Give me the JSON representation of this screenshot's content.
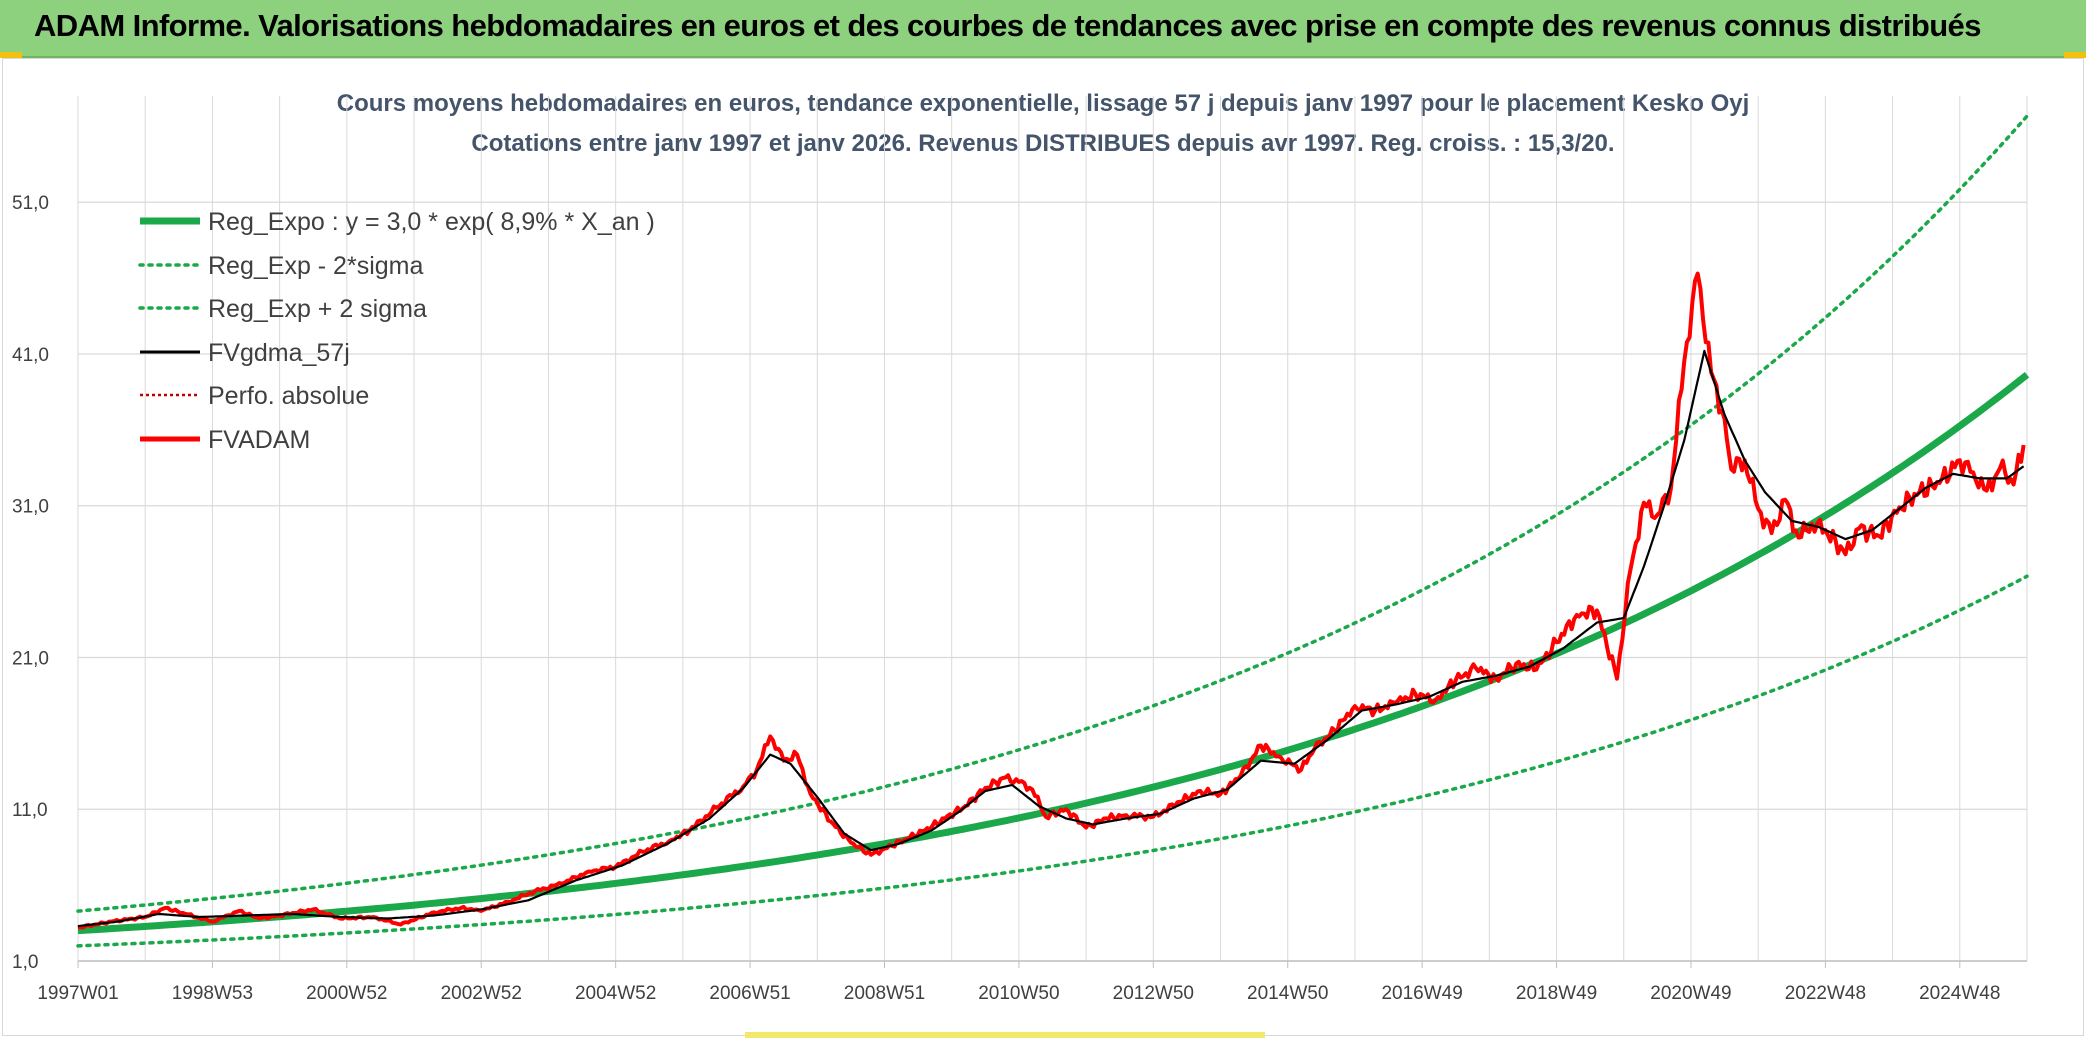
{
  "banner": {
    "title": "ADAM Informe. Valorisations hebdomadaires en euros et des courbes de tendances avec prise en compte des revenus connus distribués"
  },
  "colors": {
    "banner_bg": "#8dd17e",
    "trend": "#1aa84a",
    "price": "#ff0000",
    "smooth": "#000000",
    "perfo": "#c00000",
    "grid": "#d9d9d9"
  },
  "chart_data": {
    "type": "line",
    "title_line1": "Cours moyens hebdomadaires en euros, tendance exponentielle, lissage 57 j depuis janv 1997 pour le placement Kesko Oyj",
    "title_line2": "Cotations entre janv 1997 et janv 2026. Revenus DISTRIBUES depuis avr 1997. Reg. croiss. : 15,3/20.",
    "xlim": [
      1997.0,
      2026.0
    ],
    "ylim": [
      1.0,
      58.0
    ],
    "y_ticks": [
      1.0,
      11.0,
      21.0,
      31.0,
      41.0,
      51.0
    ],
    "y_tick_labels": [
      "1,0",
      "11,0",
      "21,0",
      "31,0",
      "41,0",
      "51,0"
    ],
    "x_ticks": [
      1997.0,
      1999.0,
      2001.0,
      2003.0,
      2005.0,
      2007.0,
      2009.0,
      2011.0,
      2013.0,
      2015.0,
      2017.0,
      2019.0,
      2021.0,
      2023.0,
      2025.0
    ],
    "x_tick_labels": [
      "1997W01",
      "1998W53",
      "2000W52",
      "2002W52",
      "2004W52",
      "2006W51",
      "2008W51",
      "2010W50",
      "2012W50",
      "2014W50",
      "2016W49",
      "2018W49",
      "2020W49",
      "2022W48",
      "2024W48"
    ],
    "legend": [
      {
        "label": "Reg_Expo : y = 3,0 * exp( 8,9% *  X_an )",
        "style": "trend"
      },
      {
        "label": "Reg_Exp - 2*sigma",
        "style": "band"
      },
      {
        "label": "Reg_Exp + 2 sigma",
        "style": "band"
      },
      {
        "label": "FVgdma_57j",
        "style": "smooth"
      },
      {
        "label": "Perfo. absolue",
        "style": "perfo"
      },
      {
        "label": "FVADAM",
        "style": "price"
      }
    ],
    "trend": {
      "a": 3.0,
      "rate": 0.089,
      "start_year": 1997.0
    },
    "band_factors": {
      "minus_2sigma": 0.665,
      "plus_2sigma": 1.43
    },
    "series": [
      {
        "name": "FVADAM",
        "x": [
          1997.0,
          1997.5,
          1998.0,
          1998.3,
          1998.6,
          1999.0,
          1999.4,
          1999.7,
          2000.0,
          2000.5,
          2000.9,
          2001.4,
          2001.8,
          2002.3,
          2002.7,
          2003.0,
          2003.4,
          2003.8,
          2004.2,
          2004.6,
          2005.0,
          2005.4,
          2005.8,
          2006.1,
          2006.5,
          2006.9,
          2007.1,
          2007.3,
          2007.5,
          2007.7,
          2007.9,
          2008.2,
          2008.5,
          2008.8,
          2009.0,
          2009.3,
          2009.6,
          2009.9,
          2010.2,
          2010.5,
          2010.8,
          2011.0,
          2011.2,
          2011.4,
          2011.7,
          2012.0,
          2012.3,
          2012.6,
          2013.0,
          2013.4,
          2013.7,
          2014.0,
          2014.3,
          2014.6,
          2014.9,
          2015.2,
          2015.4,
          2015.7,
          2016.0,
          2016.3,
          2016.6,
          2016.9,
          2017.2,
          2017.5,
          2017.8,
          2018.1,
          2018.4,
          2018.7,
          2019.0,
          2019.3,
          2019.6,
          2019.9,
          2020.1,
          2020.3,
          2020.5,
          2020.7,
          2020.9,
          2021.1,
          2021.3,
          2021.5,
          2021.6,
          2021.8,
          2022.0,
          2022.2,
          2022.4,
          2022.6,
          2022.8,
          2023.0,
          2023.3,
          2023.5,
          2023.8,
          2024.1,
          2024.4,
          2024.7,
          2025.0,
          2025.2,
          2025.4,
          2025.6,
          2025.8,
          2025.95
        ],
        "values": [
          3.2,
          3.6,
          3.9,
          4.5,
          4.1,
          3.6,
          4.3,
          3.8,
          4.0,
          4.4,
          3.8,
          3.9,
          3.4,
          4.2,
          4.5,
          4.3,
          4.9,
          5.6,
          6.1,
          6.9,
          7.2,
          8.2,
          8.9,
          9.6,
          11.1,
          12.5,
          13.6,
          15.8,
          14.2,
          14.6,
          12.0,
          10.2,
          8.8,
          8.0,
          8.4,
          9.0,
          9.6,
          10.4,
          11.2,
          12.4,
          13.1,
          12.8,
          12.3,
          10.5,
          11.0,
          9.8,
          10.4,
          10.6,
          10.5,
          11.5,
          12.2,
          12.0,
          13.2,
          15.2,
          14.4,
          13.6,
          15.0,
          16.2,
          17.8,
          17.5,
          18.0,
          18.6,
          18.2,
          19.5,
          20.3,
          19.6,
          20.6,
          20.2,
          22.0,
          23.8,
          24.1,
          19.6,
          26.8,
          31.2,
          30.4,
          32.1,
          40.5,
          46.3,
          39.8,
          36.7,
          33.4,
          34.0,
          30.8,
          29.2,
          31.4,
          28.9,
          29.8,
          29.4,
          27.8,
          29.5,
          29.0,
          30.9,
          31.9,
          32.5,
          34.0,
          33.2,
          32.0,
          33.5,
          32.4,
          35.0
        ]
      },
      {
        "name": "FVgdma_57j",
        "x": [
          1997.0,
          1997.6,
          1998.2,
          1998.8,
          1999.5,
          2000.2,
          2000.9,
          2001.6,
          2002.3,
          2003.0,
          2003.7,
          2004.4,
          2005.1,
          2005.8,
          2006.4,
          2006.9,
          2007.3,
          2007.6,
          2008.0,
          2008.4,
          2008.8,
          2009.2,
          2009.7,
          2010.1,
          2010.5,
          2010.9,
          2011.3,
          2011.7,
          2012.1,
          2012.6,
          2013.1,
          2013.6,
          2014.1,
          2014.6,
          2015.1,
          2015.6,
          2016.1,
          2016.6,
          2017.1,
          2017.6,
          2018.1,
          2018.6,
          2019.1,
          2019.6,
          2020.0,
          2020.3,
          2020.6,
          2020.9,
          2021.2,
          2021.5,
          2021.8,
          2022.1,
          2022.5,
          2022.9,
          2023.3,
          2023.7,
          2024.1,
          2024.5,
          2024.9,
          2025.3,
          2025.7,
          2025.95
        ],
        "values": [
          3.3,
          3.6,
          4.1,
          3.9,
          4.0,
          4.1,
          3.9,
          3.8,
          4.0,
          4.4,
          5.0,
          6.3,
          7.3,
          8.8,
          10.4,
          12.4,
          14.6,
          14.0,
          11.8,
          9.4,
          8.3,
          8.7,
          9.6,
          10.8,
          12.2,
          12.6,
          11.2,
          10.4,
          10.0,
          10.4,
          10.7,
          11.7,
          12.3,
          14.2,
          14.0,
          15.6,
          17.5,
          17.9,
          18.4,
          19.4,
          19.8,
          20.4,
          21.6,
          23.3,
          23.6,
          27.0,
          31.0,
          35.3,
          41.2,
          37.0,
          34.0,
          31.9,
          30.0,
          29.6,
          28.8,
          29.4,
          30.8,
          32.2,
          33.1,
          32.8,
          32.8,
          33.6
        ]
      }
    ]
  }
}
